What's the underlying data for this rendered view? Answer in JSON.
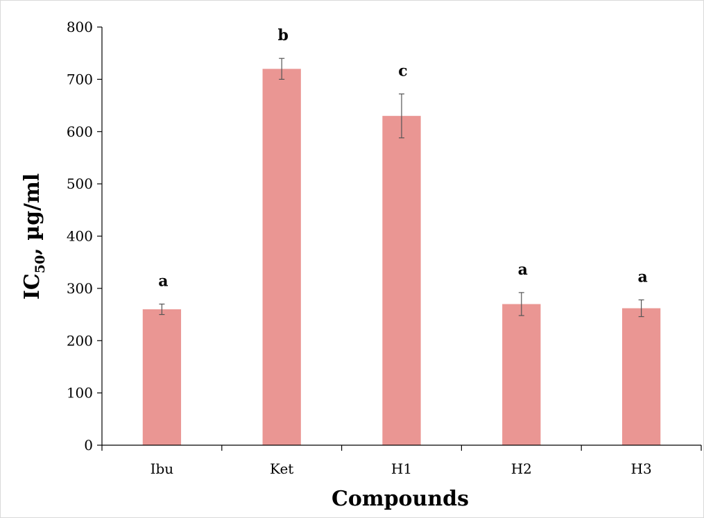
{
  "chart_data": {
    "type": "bar",
    "xlabel": "Compounds",
    "ylabel": {
      "main": "IC",
      "subscript": "50",
      "rest": ", µg/ml"
    },
    "categories": [
      "Ibu",
      "Ket",
      "H1",
      "H2",
      "H3"
    ],
    "values": [
      260,
      720,
      630,
      270,
      262
    ],
    "errors": [
      10,
      20,
      42,
      22,
      16
    ],
    "significance": [
      "a",
      "b",
      "c",
      "a",
      "a"
    ],
    "ylim": [
      0,
      800
    ],
    "yticks": [
      0,
      100,
      200,
      300,
      400,
      500,
      600,
      700,
      800
    ],
    "grid": false,
    "legend": false
  },
  "colors": {
    "bar": "#ea9693",
    "axis": "#000000",
    "error_bar": "#555555"
  }
}
